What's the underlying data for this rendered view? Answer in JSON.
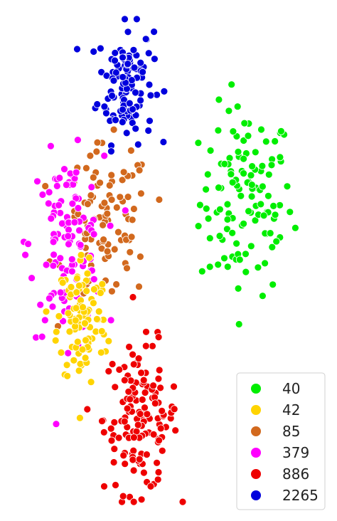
{
  "chart_data": {
    "type": "scatter",
    "title": "",
    "xlabel": "",
    "ylabel": "",
    "axes_visible": false,
    "grid": false,
    "legend": {
      "placement": "bottom-right",
      "title": ""
    },
    "xlim": [
      0,
      100
    ],
    "ylim": [
      0,
      100
    ],
    "marker": {
      "shape": "circle",
      "edgecolor": "#ffffff"
    },
    "series": [
      {
        "name": "40",
        "color": "#00ee00",
        "cluster": {
          "cx": 75,
          "cy": 62,
          "sx": 7.5,
          "sy": 9.5,
          "count": 120
        }
      },
      {
        "name": "42",
        "color": "#ffd400",
        "cluster": {
          "cx": 22,
          "cy": 38,
          "sx": 4.0,
          "sy": 7.0,
          "count": 105
        }
      },
      {
        "name": "85",
        "color": "#d2691e",
        "cluster": {
          "cx": 30,
          "cy": 57,
          "sx": 7.0,
          "sy": 8.0,
          "count": 95
        }
      },
      {
        "name": "379",
        "color": "#ff00ff",
        "cluster": {
          "cx": 17,
          "cy": 53,
          "sx": 6.0,
          "sy": 9.0,
          "count": 120
        }
      },
      {
        "name": "886",
        "color": "#ee0000",
        "cluster": {
          "cx": 41,
          "cy": 18,
          "sx": 6.0,
          "sy": 7.5,
          "count": 140
        }
      },
      {
        "name": "2265",
        "color": "#0000dd",
        "cluster": {
          "cx": 36,
          "cy": 86,
          "sx": 4.5,
          "sy": 6.0,
          "count": 120
        }
      }
    ]
  }
}
